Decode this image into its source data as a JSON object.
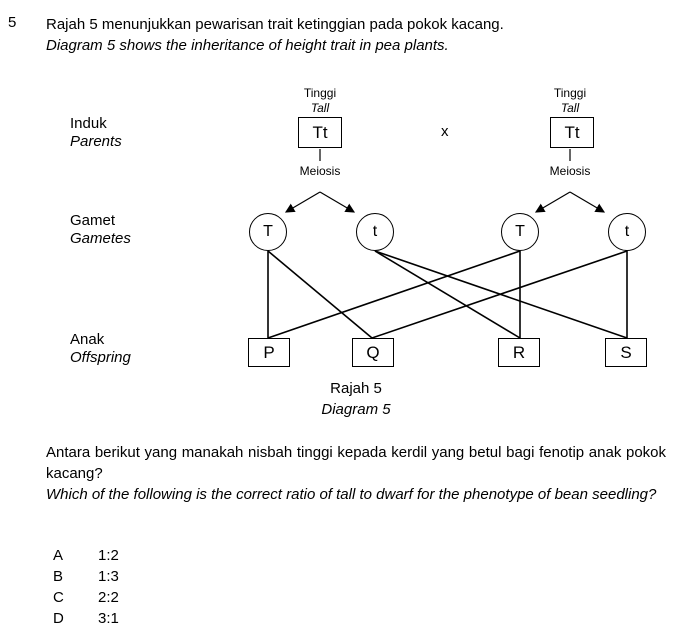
{
  "question": {
    "number": "5",
    "stem_ms": "Rajah 5 menunjukkan pewarisan trait ketinggian pada pokok kacang.",
    "stem_en": "Diagram 5 shows the inheritance of height trait in pea plants.",
    "prompt_ms": "Antara berikut yang manakah nisbah tinggi kepada kerdil yang betul bagi fenotip anak pokok kacang?",
    "prompt_en": "Which of the following is the correct ratio of tall to dwarf for the phenotype of bean seedling?"
  },
  "diagram": {
    "row_labels": {
      "parents_ms": "Induk",
      "parents_en": "Parents",
      "gametes_ms": "Gamet",
      "gametes_en": "Gametes",
      "offspring_ms": "Anak",
      "offspring_en": "Offspring"
    },
    "parent_left": {
      "trait_ms": "Tinggi",
      "trait_en": "Tall",
      "genotype": "Tt",
      "process": "Meiosis"
    },
    "parent_right": {
      "trait_ms": "Tinggi",
      "trait_en": "Tall",
      "genotype": "Tt",
      "process": "Meiosis"
    },
    "cross_symbol": "x",
    "gametes": [
      "T",
      "t",
      "T",
      "t"
    ],
    "offspring": [
      "P",
      "Q",
      "R",
      "S"
    ],
    "caption_ms": "Rajah 5",
    "caption_en": "Diagram 5"
  },
  "options": [
    {
      "letter": "A",
      "value": "1:2"
    },
    {
      "letter": "B",
      "value": "1:3"
    },
    {
      "letter": "C",
      "value": "2:2"
    },
    {
      "letter": "D",
      "value": "3:1"
    }
  ]
}
